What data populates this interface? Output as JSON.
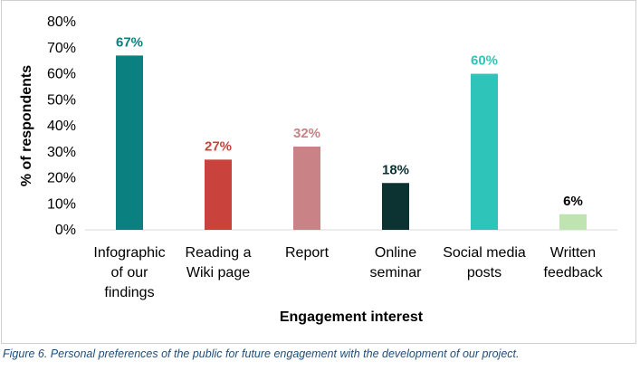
{
  "chart_data": {
    "type": "bar",
    "categories": [
      [
        "Infographic",
        "of our",
        "findings"
      ],
      [
        "Reading a",
        "Wiki page"
      ],
      [
        "Report"
      ],
      [
        "Online",
        "seminar"
      ],
      [
        "Social media",
        "posts"
      ],
      [
        "Written",
        "feedback"
      ]
    ],
    "values": [
      67,
      27,
      32,
      18,
      60,
      6
    ],
    "data_labels": [
      "67%",
      "27%",
      "32%",
      "18%",
      "60%",
      "6%"
    ],
    "bar_colors": [
      "#0a8080",
      "#c9423b",
      "#c98285",
      "#0c3232",
      "#2ec4b9",
      "#bfe3b1"
    ],
    "label_colors": [
      "#0a8080",
      "#c9423b",
      "#c98285",
      "#0c3232",
      "#2ec4b9",
      "#000000"
    ],
    "yticks": [
      "0%",
      "10%",
      "20%",
      "30%",
      "40%",
      "50%",
      "60%",
      "70%",
      "80%"
    ],
    "ylim": [
      0,
      80
    ],
    "xlabel": "Engagement interest",
    "ylabel": "% of respondents",
    "title": "",
    "grid": false,
    "legend": "none"
  },
  "caption": "Figure 6. Personal preferences of the public for future engagement with the development of our project."
}
